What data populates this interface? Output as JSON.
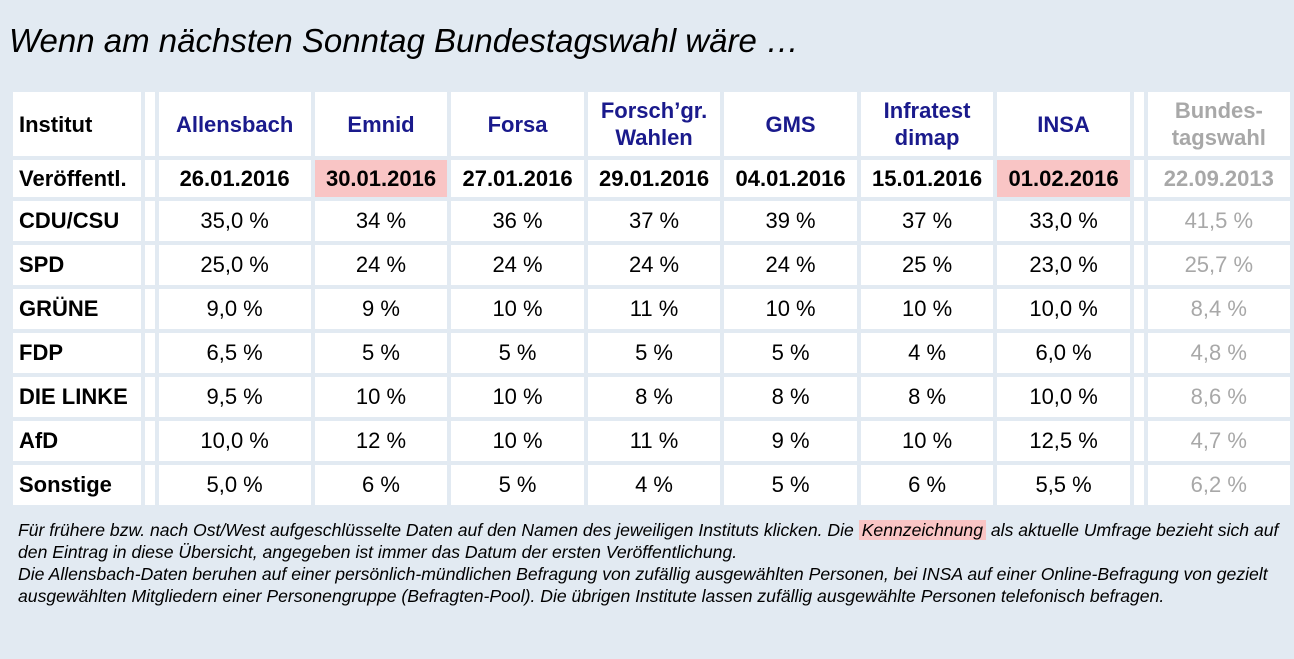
{
  "title": "Wenn am nächsten Sonntag Bundestagswahl wäre …",
  "table": {
    "row_headers": {
      "institut": "Institut",
      "published": "Veröffentl."
    },
    "institutes": [
      {
        "name_line1": "Allensbach",
        "name_line2": "",
        "date": "26.01.2016",
        "highlight": false
      },
      {
        "name_line1": "Emnid",
        "name_line2": "",
        "date": "30.01.2016",
        "highlight": true
      },
      {
        "name_line1": "Forsa",
        "name_line2": "",
        "date": "27.01.2016",
        "highlight": false
      },
      {
        "name_line1": "Forsch’gr.",
        "name_line2": "Wahlen",
        "date": "29.01.2016",
        "highlight": false
      },
      {
        "name_line1": "GMS",
        "name_line2": "",
        "date": "04.01.2016",
        "highlight": false
      },
      {
        "name_line1": "Infratest",
        "name_line2": "dimap",
        "date": "15.01.2016",
        "highlight": false
      },
      {
        "name_line1": "INSA",
        "name_line2": "",
        "date": "01.02.2016",
        "highlight": true
      }
    ],
    "election": {
      "name_line1": "Bundes-",
      "name_line2": "tagswahl",
      "date": "22.09.2013"
    },
    "parties": [
      {
        "name": "CDU/CSU",
        "values": [
          "35,0 %",
          "34 %",
          "36 %",
          "37 %",
          "39 %",
          "37 %",
          "33,0 %"
        ],
        "election": "41,5 %"
      },
      {
        "name": "SPD",
        "values": [
          "25,0 %",
          "24 %",
          "24 %",
          "24 %",
          "24 %",
          "25 %",
          "23,0 %"
        ],
        "election": "25,7 %"
      },
      {
        "name": "GRÜNE",
        "values": [
          "9,0 %",
          "9 %",
          "10 %",
          "11 %",
          "10 %",
          "10 %",
          "10,0 %"
        ],
        "election": "8,4 %"
      },
      {
        "name": "FDP",
        "values": [
          "6,5 %",
          "5 %",
          "5 %",
          "5 %",
          "5 %",
          "4 %",
          "6,0 %"
        ],
        "election": "4,8 %"
      },
      {
        "name": "DIE LINKE",
        "values": [
          "9,5 %",
          "10 %",
          "10 %",
          "8 %",
          "8 %",
          "8 %",
          "10,0 %"
        ],
        "election": "8,6 %"
      },
      {
        "name": "AfD",
        "values": [
          "10,0 %",
          "12 %",
          "10 %",
          "11 %",
          "9 %",
          "10 %",
          "12,5 %"
        ],
        "election": "4,7 %"
      },
      {
        "name": "Sonstige",
        "values": [
          "5,0 %",
          "6 %",
          "5 %",
          "4 %",
          "5 %",
          "6 %",
          "5,5 %"
        ],
        "election": "6,2 %"
      }
    ]
  },
  "colors": {
    "background": "#e2eaf2",
    "institute_link": "#1a1a8c",
    "highlight": "#f9c5c5",
    "election_grey": "#a8a8a8"
  },
  "footnote": {
    "part1": "Für frühere bzw. nach Ost/West aufgeschlüsselte Daten auf den Namen des jeweiligen Instituts klicken. Die ",
    "mark": "Kennzeichnung",
    "part2": " als aktuelle Umfrage bezieht sich auf den Eintrag in diese Übersicht, angegeben ist immer das Datum der ersten Veröffentlichung.",
    "para2": "Die Allensbach-Daten beruhen auf einer persönlich-mündlichen Befragung von zufällig ausgewählten Personen, bei INSA auf einer Online-Befragung von gezielt ausgewählten Mitgliedern einer Personengruppe (Befragten-Pool). Die übrigen Institute lassen zufällig ausgewählte Personen telefonisch befragen."
  }
}
